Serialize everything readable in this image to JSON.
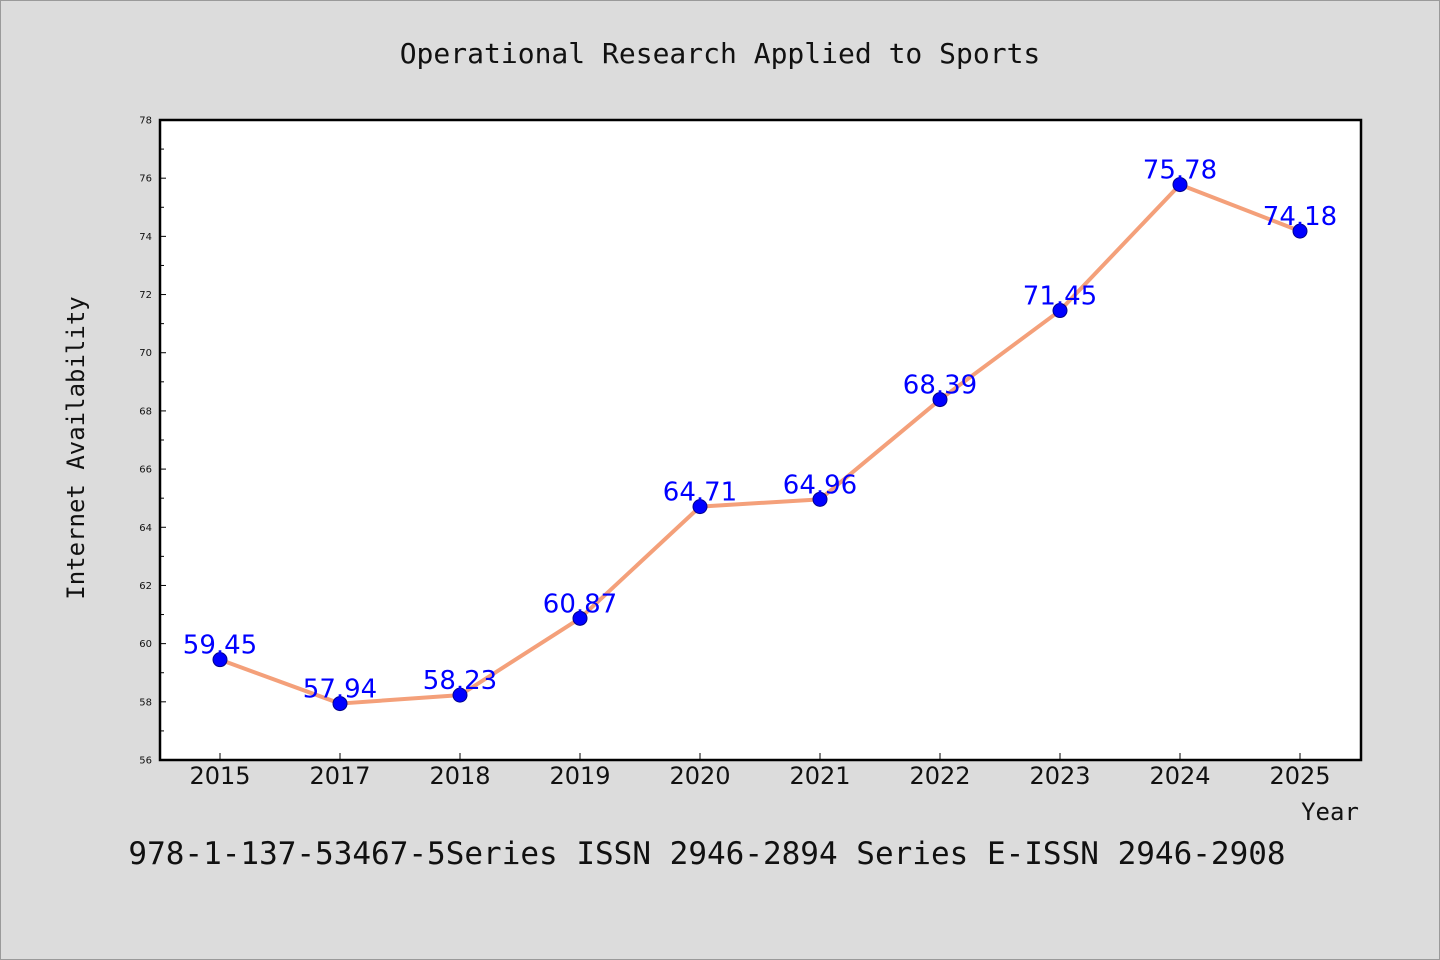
{
  "chart_data": {
    "type": "line",
    "title": "Operational Research Applied to Sports",
    "xlabel": "Year",
    "ylabel": "Internet Availability",
    "categories": [
      "2015",
      "2017",
      "2018",
      "2019",
      "2020",
      "2021",
      "2022",
      "2023",
      "2024",
      "2025"
    ],
    "series": [
      {
        "values": [
          59.45,
          57.94,
          58.23,
          60.87,
          64.71,
          64.96,
          68.39,
          71.45,
          75.78,
          74.18
        ],
        "labels": [
          "59.45",
          "57.94",
          "58.23",
          "60.87",
          "64.71",
          "64.96",
          "68.39",
          "71.45",
          "75.78",
          "74.18"
        ],
        "line_color": "#f4a07a",
        "marker_color": "#0000ff"
      }
    ],
    "ylim": [
      56,
      78
    ],
    "yticks": [
      "56",
      "58",
      "60",
      "62",
      "64",
      "66",
      "68",
      "70",
      "72",
      "74",
      "76",
      "78"
    ],
    "grid": false,
    "legend": "none"
  },
  "footer": {
    "text": "978-1-137-53467-5Series ISSN 2946-2894 Series E-ISSN 2946-2908"
  }
}
